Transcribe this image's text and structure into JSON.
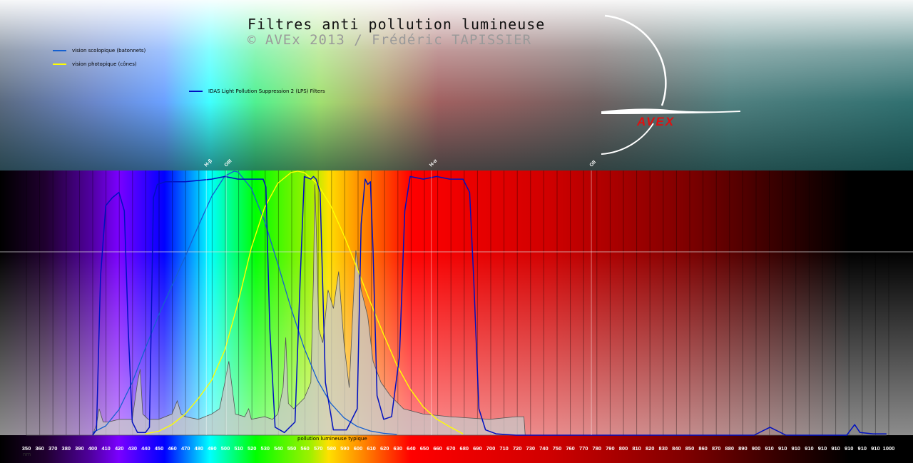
{
  "title": "Filtres anti pollution lumineuse",
  "subtitle": "© AVEx 2013 / Frédéric TAPISSIER",
  "logo_text": "AVEX",
  "colors": {
    "scotopic": "#1560d0",
    "photopic": "#ffff00",
    "filter": "#0010c0",
    "pollution": "#9a9a9a",
    "logo": "#e01010"
  },
  "chart_data": {
    "type": "line",
    "xlabel": "nm",
    "xlim": [
      350,
      1000
    ],
    "ylim": [
      0,
      100
    ],
    "x_tick_labels": [
      "350",
      "360",
      "370",
      "380",
      "390",
      "400",
      "410",
      "420",
      "430",
      "440",
      "450",
      "460",
      "470",
      "480",
      "490",
      "500",
      "510",
      "520",
      "530",
      "540",
      "550",
      "560",
      "570",
      "580",
      "590",
      "600",
      "610",
      "620",
      "630",
      "640",
      "650",
      "660",
      "670",
      "680",
      "690",
      "700",
      "710",
      "720",
      "730",
      "740",
      "750",
      "760",
      "770",
      "780",
      "790",
      "800",
      "810",
      "820",
      "830",
      "840",
      "850",
      "860",
      "870",
      "880",
      "890",
      "900",
      "910",
      "910",
      "910",
      "910",
      "910",
      "910",
      "910",
      "910",
      "910",
      "1000"
    ],
    "grid": true,
    "legend": [
      {
        "label": "vision scolopique (batonnets)",
        "color": "#1560d0"
      },
      {
        "label": "vision photopique (cônes)",
        "color": "#ffff00"
      },
      {
        "label": "IDAS Light Pollution Suppression 2 (LPS) Filters",
        "color": "#0010c0"
      }
    ],
    "area_label": "pollution lumineuse typique",
    "emission_lines": [
      {
        "label": "H-β",
        "nm": 486
      },
      {
        "label": "OIII",
        "nm": 501
      },
      {
        "label": "H-α",
        "nm": 656
      },
      {
        "label": "OII",
        "nm": 777
      }
    ],
    "series": [
      {
        "name": "vision scolopique (batonnets)",
        "x": [
          400,
          410,
          420,
          430,
          440,
          450,
          460,
          470,
          480,
          490,
          500,
          507,
          510,
          520,
          530,
          540,
          550,
          560,
          570,
          580,
          590,
          600,
          610,
          620,
          630
        ],
        "y": [
          1,
          3.5,
          9.7,
          20,
          33,
          45.5,
          56.7,
          67.6,
          79.3,
          90.4,
          98.2,
          100,
          99.7,
          93.5,
          81.1,
          65,
          48.1,
          32.9,
          20.8,
          12.1,
          6.6,
          3.3,
          1.6,
          0.7,
          0.3
        ]
      },
      {
        "name": "vision photopique (cônes)",
        "x": [
          440,
          450,
          460,
          470,
          480,
          490,
          500,
          510,
          520,
          530,
          540,
          550,
          555,
          560,
          570,
          580,
          590,
          600,
          610,
          620,
          630,
          640,
          650,
          660,
          670,
          680
        ],
        "y": [
          0.5,
          1.5,
          4,
          8,
          13.9,
          20.8,
          32.3,
          50.3,
          71,
          86.2,
          95.4,
          99.5,
          100,
          99.5,
          95.2,
          87,
          75.7,
          63.1,
          50.3,
          38.1,
          26.5,
          17.5,
          10.7,
          6.1,
          3.2,
          0.5
        ]
      },
      {
        "name": "IDAS Light Pollution Suppression 2 (LPS) Filters",
        "x": [
          400,
          403,
          406,
          410,
          415,
          420,
          424,
          427,
          430,
          434,
          440,
          443,
          446,
          449,
          455,
          470,
          490,
          500,
          510,
          520,
          529,
          531,
          534,
          538,
          545,
          553,
          557,
          560,
          565,
          567,
          569,
          572,
          576,
          582,
          592,
          600,
          603,
          606,
          608,
          610,
          612,
          615,
          620,
          626,
          632,
          636,
          640,
          650,
          660,
          670,
          680,
          685,
          688,
          692,
          697,
          705,
          720,
          900,
          908,
          912,
          916,
          924,
          970,
          976,
          980,
          990,
          1000
        ],
        "y": [
          0,
          2,
          60,
          87,
          90,
          92,
          85,
          40,
          5,
          1,
          1,
          3,
          90,
          95,
          96,
          96,
          97,
          98,
          97,
          97,
          97,
          94,
          40,
          3,
          1,
          5,
          60,
          98,
          97,
          98,
          97,
          92,
          20,
          2,
          2,
          10,
          80,
          97,
          95,
          96,
          70,
          15,
          6,
          7,
          30,
          85,
          98,
          97,
          98,
          97,
          97,
          92,
          60,
          10,
          2,
          0.5,
          0,
          0,
          2,
          3,
          2,
          0,
          0,
          4,
          1,
          0.5,
          0.5
        ]
      },
      {
        "name": "pollution lumineuse typique",
        "x": [
          350,
          400,
          403,
          405,
          408,
          412,
          420,
          430,
          434,
          436,
          438,
          442,
          450,
          460,
          464,
          467,
          470,
          480,
          490,
          496,
          500,
          503,
          508,
          515,
          518,
          520,
          530,
          536,
          540,
          544,
          546,
          548,
          552,
          560,
          565,
          567,
          568,
          569,
          571,
          574,
          578,
          582,
          586,
          590,
          594,
          597,
          599,
          603,
          608,
          612,
          618,
          625,
          635,
          650,
          670,
          700,
          720,
          726,
          727,
          1000
        ],
        "y": [
          0,
          0,
          4,
          10,
          5,
          5,
          6,
          6,
          20,
          25,
          8,
          6,
          6,
          8,
          13,
          8,
          7,
          6,
          8,
          10,
          20,
          28,
          8,
          7,
          10,
          6,
          7,
          6,
          8,
          18,
          37,
          12,
          10,
          14,
          20,
          60,
          95,
          80,
          40,
          35,
          55,
          48,
          62,
          35,
          18,
          50,
          70,
          55,
          45,
          28,
          20,
          15,
          10,
          8,
          7,
          6,
          7,
          7,
          0,
          0
        ]
      }
    ]
  }
}
